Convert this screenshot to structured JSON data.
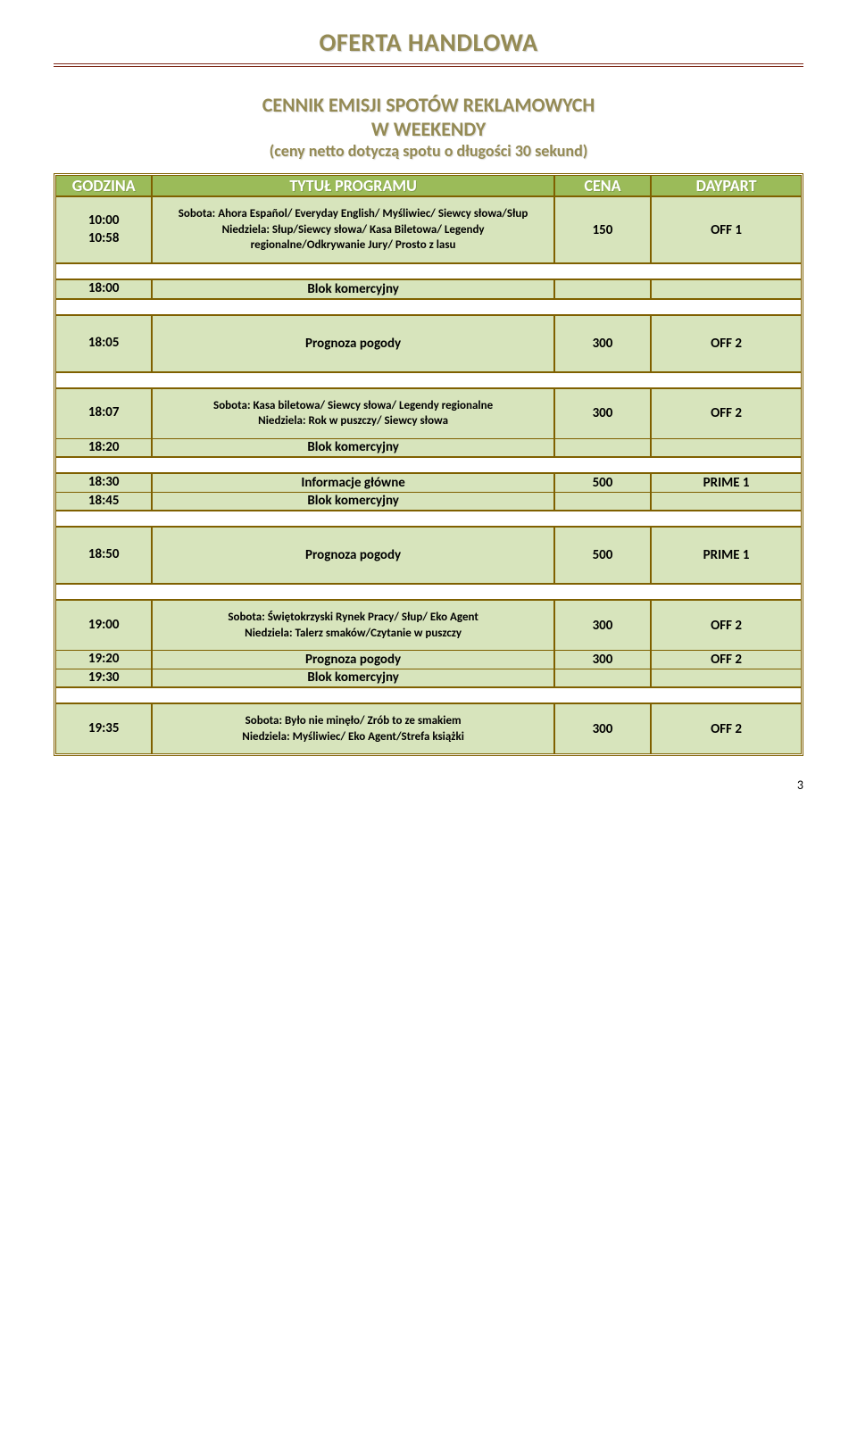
{
  "page_title": "OFERTA HANDLOWA",
  "section": {
    "line1": "CENNIK EMISJI SPOTÓW REKLAMOWYCH",
    "line2": "W WEEKENDY",
    "note": "(ceny netto dotyczą spotu o długości 30 sekund)"
  },
  "headers": {
    "time": "GODZINA",
    "program": "TYTUŁ PROGRAMU",
    "price": "CENA",
    "daypart": "DAYPART"
  },
  "rows": {
    "r1": {
      "time1": "10:00",
      "time2": "10:58",
      "program": "Sobota: Ahora Español/ Everyday English/ Myśliwiec/ Siewcy słowa/Słup\nNiedziela: Słup/Siewcy słowa/ Kasa Biletowa/ Legendy regionalne/Odkrywanie Jury/ Prosto z lasu",
      "price": "150",
      "daypart": "OFF 1"
    },
    "r2": {
      "time": "18:00",
      "program": "Blok komercyjny"
    },
    "r3": {
      "time": "18:05",
      "program": "Prognoza pogody",
      "price": "300",
      "daypart": "OFF 2"
    },
    "r4": {
      "time": "18:07",
      "program": "Sobota: Kasa biletowa/ Siewcy słowa/ Legendy regionalne\nNiedziela: Rok w puszczy/ Siewcy słowa",
      "price": "300",
      "daypart": "OFF 2"
    },
    "r5": {
      "time": "18:20",
      "program": "Blok komercyjny"
    },
    "r6": {
      "time": "18:30",
      "program": "Informacje główne",
      "price": "500",
      "daypart": "PRIME 1"
    },
    "r7": {
      "time": "18:45",
      "program": "Blok komercyjny"
    },
    "r8": {
      "time": "18:50",
      "program": "Prognoza pogody",
      "price": "500",
      "daypart": "PRIME 1"
    },
    "r9": {
      "time": "19:00",
      "program": "Sobota: Świętokrzyski Rynek Pracy/ Słup/ Eko Agent\nNiedziela: Talerz smaków/Czytanie w puszczy",
      "price": "300",
      "daypart": "OFF 2"
    },
    "r10": {
      "time": "19:20",
      "program": "Prognoza pogody",
      "price": "300",
      "daypart": "OFF 2"
    },
    "r11": {
      "time": "19:30",
      "program": "Blok komercyjny"
    },
    "r12": {
      "time": "19:35",
      "program": "Sobota: Było nie minęło/ Zrób to ze smakiem\nNiedziela: Myśliwiec/ Eko Agent/Strefa książki",
      "price": "300",
      "daypart": "OFF 2"
    }
  },
  "page_number": "3",
  "colors": {
    "olive_text": "#948a54",
    "header_bg": "#9bbb59",
    "cell_bg": "#d7e4bc",
    "border": "#7f6000",
    "rule": "#7f2a1a"
  }
}
